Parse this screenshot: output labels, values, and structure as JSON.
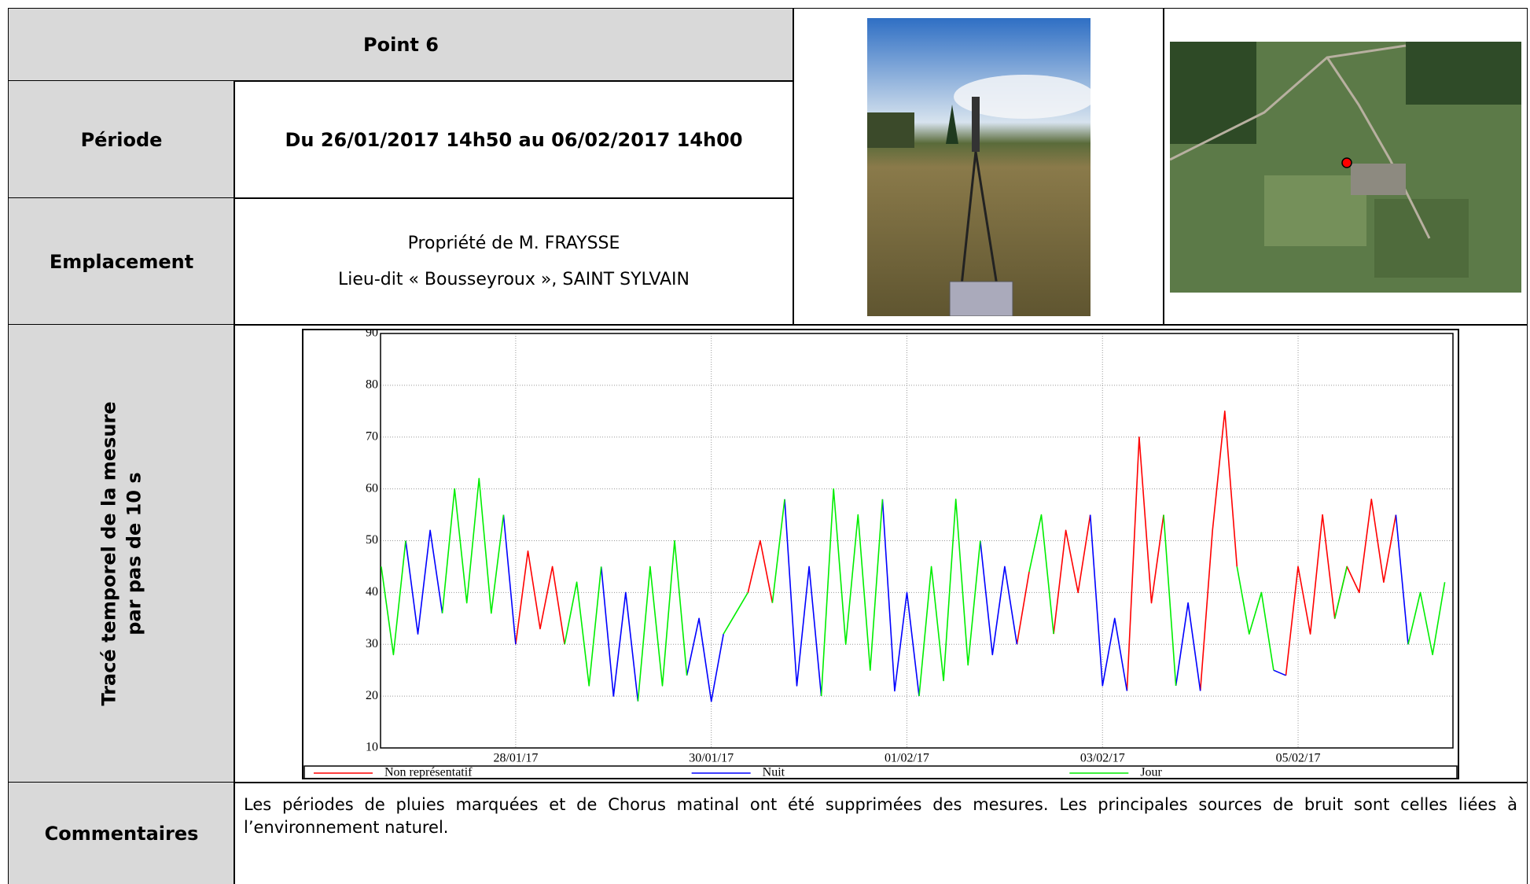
{
  "header": {
    "title": "Point 6"
  },
  "rows": [
    {
      "label": "Période",
      "value": "Du 26/01/2017 14h50 au 06/02/2017 14h00"
    },
    {
      "label": "Emplacement",
      "lines": [
        "Propriété de M. FRAYSSE",
        "Lieu-dit « Bousseyroux », SAINT SYLVAIN"
      ]
    }
  ],
  "chart_label": [
    "Tracé temporel de la mesure",
    "par pas de 10 s"
  ],
  "chart_data": {
    "type": "line",
    "x": [
      "2017-01-26T15:00",
      "2017-01-26T18:00",
      "2017-01-26T21:00",
      "2017-01-27T00:00",
      "2017-01-27T03:00",
      "2017-01-27T06:00",
      "2017-01-27T09:00",
      "2017-01-27T12:00",
      "2017-01-27T15:00",
      "2017-01-27T18:00",
      "2017-01-27T21:00",
      "2017-01-28T00:00",
      "2017-01-28T03:00",
      "2017-01-28T06:00",
      "2017-01-28T09:00",
      "2017-01-28T12:00",
      "2017-01-28T15:00",
      "2017-01-28T18:00",
      "2017-01-28T21:00",
      "2017-01-29T00:00",
      "2017-01-29T03:00",
      "2017-01-29T06:00",
      "2017-01-29T09:00",
      "2017-01-29T12:00",
      "2017-01-29T15:00",
      "2017-01-29T18:00",
      "2017-01-29T21:00",
      "2017-01-30T00:00",
      "2017-01-30T03:00",
      "2017-01-30T06:00",
      "2017-01-30T09:00",
      "2017-01-30T12:00",
      "2017-01-30T15:00",
      "2017-01-30T18:00",
      "2017-01-30T21:00",
      "2017-01-31T00:00",
      "2017-01-31T03:00",
      "2017-01-31T06:00",
      "2017-01-31T09:00",
      "2017-01-31T12:00",
      "2017-01-31T15:00",
      "2017-01-31T18:00",
      "2017-01-31T21:00",
      "2017-02-01T00:00",
      "2017-02-01T03:00",
      "2017-02-01T06:00",
      "2017-02-01T09:00",
      "2017-02-01T12:00",
      "2017-02-01T15:00",
      "2017-02-01T18:00",
      "2017-02-01T21:00",
      "2017-02-02T00:00",
      "2017-02-02T03:00",
      "2017-02-02T06:00",
      "2017-02-02T09:00",
      "2017-02-02T12:00",
      "2017-02-02T15:00",
      "2017-02-02T18:00",
      "2017-02-02T21:00",
      "2017-02-03T00:00",
      "2017-02-03T03:00",
      "2017-02-03T06:00",
      "2017-02-03T09:00",
      "2017-02-03T12:00",
      "2017-02-03T15:00",
      "2017-02-03T18:00",
      "2017-02-03T21:00",
      "2017-02-04T00:00",
      "2017-02-04T03:00",
      "2017-02-04T06:00",
      "2017-02-04T09:00",
      "2017-02-04T12:00",
      "2017-02-04T15:00",
      "2017-02-04T18:00",
      "2017-02-04T21:00",
      "2017-02-05T00:00",
      "2017-02-05T03:00",
      "2017-02-05T06:00",
      "2017-02-05T09:00",
      "2017-02-05T12:00",
      "2017-02-05T15:00",
      "2017-02-05T18:00",
      "2017-02-05T21:00",
      "2017-02-06T00:00",
      "2017-02-06T03:00",
      "2017-02-06T06:00",
      "2017-02-06T09:00",
      "2017-02-06T12:00"
    ],
    "series": [
      {
        "name": "Non représentatif",
        "color": "#ff0000",
        "values": [
          null,
          null,
          null,
          null,
          null,
          null,
          null,
          null,
          null,
          null,
          null,
          30,
          48,
          33,
          45,
          30,
          null,
          null,
          null,
          null,
          null,
          null,
          null,
          null,
          null,
          null,
          null,
          null,
          null,
          null,
          40,
          50,
          38,
          null,
          null,
          null,
          null,
          null,
          null,
          null,
          null,
          null,
          null,
          null,
          null,
          null,
          null,
          null,
          null,
          null,
          null,
          null,
          30,
          44,
          null,
          32,
          52,
          40,
          55,
          null,
          null,
          21,
          70,
          38,
          55,
          null,
          null,
          21,
          52,
          75,
          45,
          null,
          null,
          null,
          24,
          45,
          32,
          55,
          35,
          45,
          40,
          58,
          42,
          55,
          null,
          null,
          null,
          null
        ]
      },
      {
        "name": "Nuit",
        "color": "#0000ff",
        "values": [
          null,
          null,
          50,
          32,
          52,
          36,
          null,
          null,
          null,
          null,
          55,
          30,
          null,
          null,
          null,
          null,
          null,
          null,
          45,
          20,
          40,
          19,
          null,
          null,
          null,
          24,
          35,
          19,
          32,
          null,
          null,
          null,
          null,
          58,
          22,
          45,
          20,
          null,
          null,
          null,
          null,
          58,
          21,
          40,
          20,
          null,
          null,
          null,
          null,
          50,
          28,
          45,
          30,
          null,
          null,
          null,
          null,
          null,
          55,
          22,
          35,
          21,
          null,
          null,
          null,
          22,
          38,
          21,
          null,
          null,
          null,
          null,
          null,
          25,
          24,
          null,
          null,
          null,
          null,
          null,
          null,
          null,
          null,
          55,
          30,
          null,
          null,
          null
        ]
      },
      {
        "name": "Jour",
        "color": "#00ee00",
        "values": [
          45,
          28,
          50,
          null,
          null,
          36,
          60,
          38,
          62,
          36,
          55,
          null,
          null,
          null,
          null,
          30,
          42,
          22,
          45,
          null,
          null,
          19,
          45,
          22,
          50,
          24,
          null,
          null,
          32,
          36,
          40,
          null,
          38,
          58,
          null,
          null,
          20,
          60,
          30,
          55,
          25,
          58,
          null,
          null,
          20,
          45,
          23,
          58,
          26,
          50,
          null,
          null,
          null,
          44,
          55,
          32,
          null,
          null,
          null,
          null,
          null,
          null,
          null,
          null,
          55,
          22,
          null,
          null,
          null,
          null,
          45,
          32,
          40,
          25,
          null,
          null,
          null,
          null,
          35,
          45,
          null,
          null,
          null,
          null,
          30,
          40,
          28,
          42
        ]
      }
    ],
    "xlim": [
      "2017-01-26T14:50",
      "2017-02-06T14:00"
    ],
    "xticks": [
      {
        "value": "2017-01-28T00:00",
        "label": "28/01/17"
      },
      {
        "value": "2017-01-30T00:00",
        "label": "30/01/17"
      },
      {
        "value": "2017-02-01T00:00",
        "label": "01/02/17"
      },
      {
        "value": "2017-02-03T00:00",
        "label": "03/02/17"
      },
      {
        "value": "2017-02-05T00:00",
        "label": "05/02/17"
      }
    ],
    "ylim": [
      10,
      90
    ],
    "yticks": [
      10,
      20,
      30,
      40,
      50,
      60,
      70,
      80,
      90
    ],
    "grid": true,
    "legend": "bottom"
  },
  "comments": {
    "label": "Commentaires",
    "text": "Les périodes de pluies marquées et de Chorus matinal ont été supprimées des mesures. Les principales sources de bruit sont celles liées à l’environnement naturel."
  }
}
